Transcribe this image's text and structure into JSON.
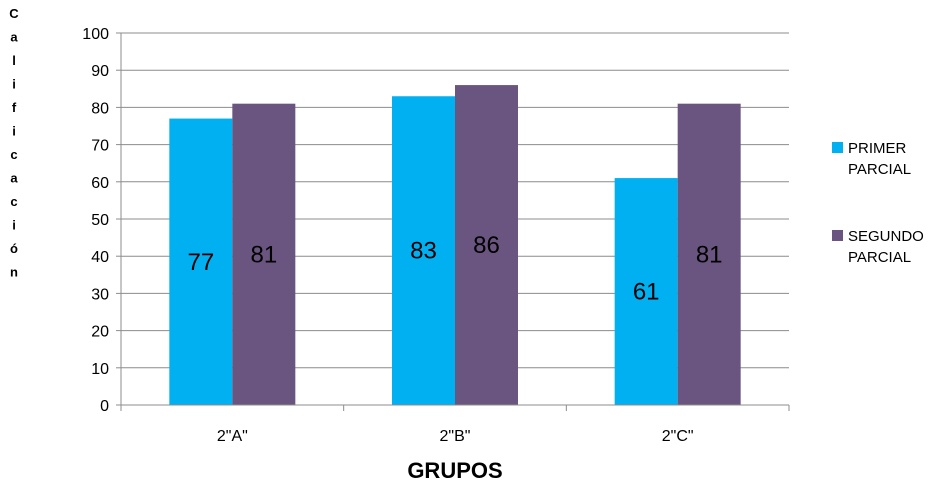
{
  "chart_data": {
    "type": "bar",
    "categories": [
      "2\"A\"",
      "2\"B\"",
      "2\"C\""
    ],
    "series": [
      {
        "name": "PRIMER PARCIAL",
        "values": [
          77,
          83,
          61
        ],
        "color": "#00b0f0"
      },
      {
        "name": "SEGUNDO PARCIAL",
        "values": [
          81,
          86,
          81
        ],
        "color": "#6a5480"
      }
    ],
    "ylabel": "Calificación",
    "xlabel": "GRUPOS",
    "ylim": [
      0,
      100
    ],
    "yticks": [
      "0",
      "10",
      "20",
      "30",
      "40",
      "50",
      "60",
      "70",
      "80",
      "90",
      "100"
    ],
    "grid": true,
    "legend": "right"
  }
}
